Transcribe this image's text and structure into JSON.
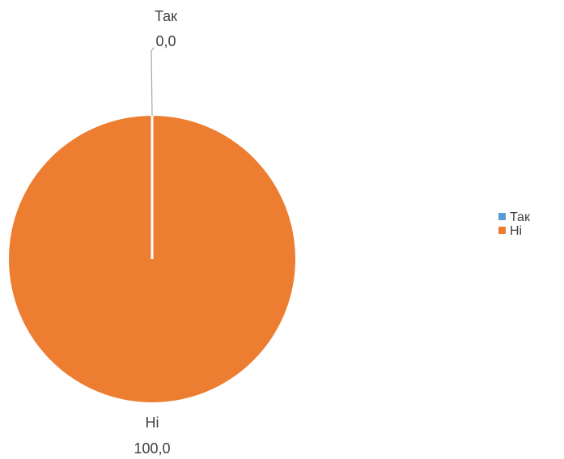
{
  "chart_data": {
    "type": "pie",
    "categories": [
      "Так",
      "Ні"
    ],
    "values": [
      0.0,
      100.0
    ],
    "value_labels": [
      "0,0",
      "100,0"
    ],
    "colors": [
      "#5B9BD5",
      "#ED7D31"
    ],
    "legend": {
      "position": "right",
      "entries": [
        "Так",
        "Ні"
      ]
    },
    "title": ""
  }
}
